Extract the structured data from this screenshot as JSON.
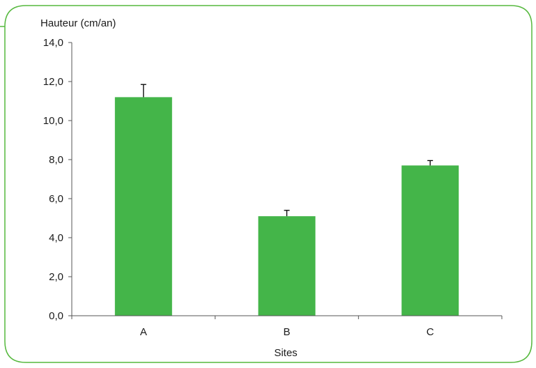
{
  "chart_data": {
    "type": "bar",
    "title": "",
    "ylabel": "Hauteur (cm/an)",
    "xlabel": "Sites",
    "categories": [
      "A",
      "B",
      "C"
    ],
    "values": [
      11.2,
      5.1,
      7.7
    ],
    "error": [
      0.65,
      0.3,
      0.25
    ],
    "ylim": [
      0,
      14
    ],
    "yticks": [
      "0,0",
      "2,0",
      "4,0",
      "6,0",
      "8,0",
      "10,0",
      "12,0",
      "14,0"
    ],
    "grid": false,
    "bar_color": "#44b549",
    "frame_color": "#55b83d"
  }
}
